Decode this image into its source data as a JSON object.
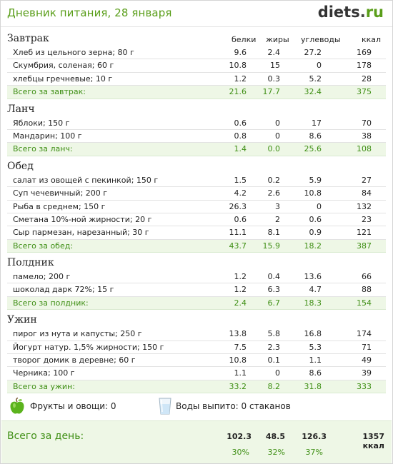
{
  "header": {
    "title": "Дневник питания, 28 января",
    "brand": "diets",
    "brand_dot": ".",
    "brand_tld": "ru"
  },
  "columns": {
    "protein": "белки",
    "fat": "жиры",
    "carbs": "углеводы",
    "kcal": "ккал"
  },
  "meals": [
    {
      "title": "Завтрак",
      "items": [
        {
          "name": "Хлеб из цельного зерна; 80 г",
          "p": "9.6",
          "f": "2.4",
          "c": "27.2",
          "k": "169"
        },
        {
          "name": "Скумбрия, соленая; 60 г",
          "p": "10.8",
          "f": "15",
          "c": "0",
          "k": "178"
        },
        {
          "name": "хлебцы гречневые; 10 г",
          "p": "1.2",
          "f": "0.3",
          "c": "5.2",
          "k": "28"
        }
      ],
      "total": {
        "name": "Всего за завтрак:",
        "p": "21.6",
        "f": "17.7",
        "c": "32.4",
        "k": "375"
      }
    },
    {
      "title": "Ланч",
      "items": [
        {
          "name": "Яблоки; 150 г",
          "p": "0.6",
          "f": "0",
          "c": "17",
          "k": "70"
        },
        {
          "name": "Мандарин; 100 г",
          "p": "0.8",
          "f": "0",
          "c": "8.6",
          "k": "38"
        }
      ],
      "total": {
        "name": "Всего за ланч:",
        "p": "1.4",
        "f": "0.0",
        "c": "25.6",
        "k": "108"
      }
    },
    {
      "title": "Обед",
      "items": [
        {
          "name": "салат из овощей с пекинкой; 150 г",
          "p": "1.5",
          "f": "0.2",
          "c": "5.9",
          "k": "27"
        },
        {
          "name": "Суп чечевичный; 200 г",
          "p": "4.2",
          "f": "2.6",
          "c": "10.8",
          "k": "84"
        },
        {
          "name": "Рыба в среднем; 150 г",
          "p": "26.3",
          "f": "3",
          "c": "0",
          "k": "132"
        },
        {
          "name": "Сметана 10%-ной жирности; 20 г",
          "p": "0.6",
          "f": "2",
          "c": "0.6",
          "k": "23"
        },
        {
          "name": "Сыр пармезан, нарезанный; 30 г",
          "p": "11.1",
          "f": "8.1",
          "c": "0.9",
          "k": "121"
        }
      ],
      "total": {
        "name": "Всего за обед:",
        "p": "43.7",
        "f": "15.9",
        "c": "18.2",
        "k": "387"
      }
    },
    {
      "title": "Полдник",
      "items": [
        {
          "name": "памело; 200 г",
          "p": "1.2",
          "f": "0.4",
          "c": "13.6",
          "k": "66"
        },
        {
          "name": "шоколад дарк 72%; 15 г",
          "p": "1.2",
          "f": "6.3",
          "c": "4.7",
          "k": "88"
        }
      ],
      "total": {
        "name": "Всего за полдник:",
        "p": "2.4",
        "f": "6.7",
        "c": "18.3",
        "k": "154"
      }
    },
    {
      "title": "Ужин",
      "items": [
        {
          "name": "пирог из нута и капусты; 250 г",
          "p": "13.8",
          "f": "5.8",
          "c": "16.8",
          "k": "174"
        },
        {
          "name": "Йогурт натур. 1,5% жирности; 150 г",
          "p": "7.5",
          "f": "2.3",
          "c": "5.3",
          "k": "71"
        },
        {
          "name": "творог домик в деревне; 60 г",
          "p": "10.8",
          "f": "0.1",
          "c": "1.1",
          "k": "49"
        },
        {
          "name": "Черника; 100 г",
          "p": "1.1",
          "f": "0",
          "c": "8.6",
          "k": "39"
        }
      ],
      "total": {
        "name": "Всего за ужин:",
        "p": "33.2",
        "f": "8.2",
        "c": "31.8",
        "k": "333"
      }
    }
  ],
  "extras": {
    "fruits": "Фрукты и овощи: 0",
    "water": "Воды выпито: 0 стаканов",
    "apple_icon": "apple-icon",
    "glass_icon": "glass-icon",
    "apple_color": "#5bb31d"
  },
  "day_total": {
    "label": "Всего за день:",
    "p": "102.3",
    "f": "48.5",
    "c": "126.3",
    "k": "1357 ккал",
    "p_pct": "30%",
    "f_pct": "32%",
    "c_pct": "37%"
  }
}
